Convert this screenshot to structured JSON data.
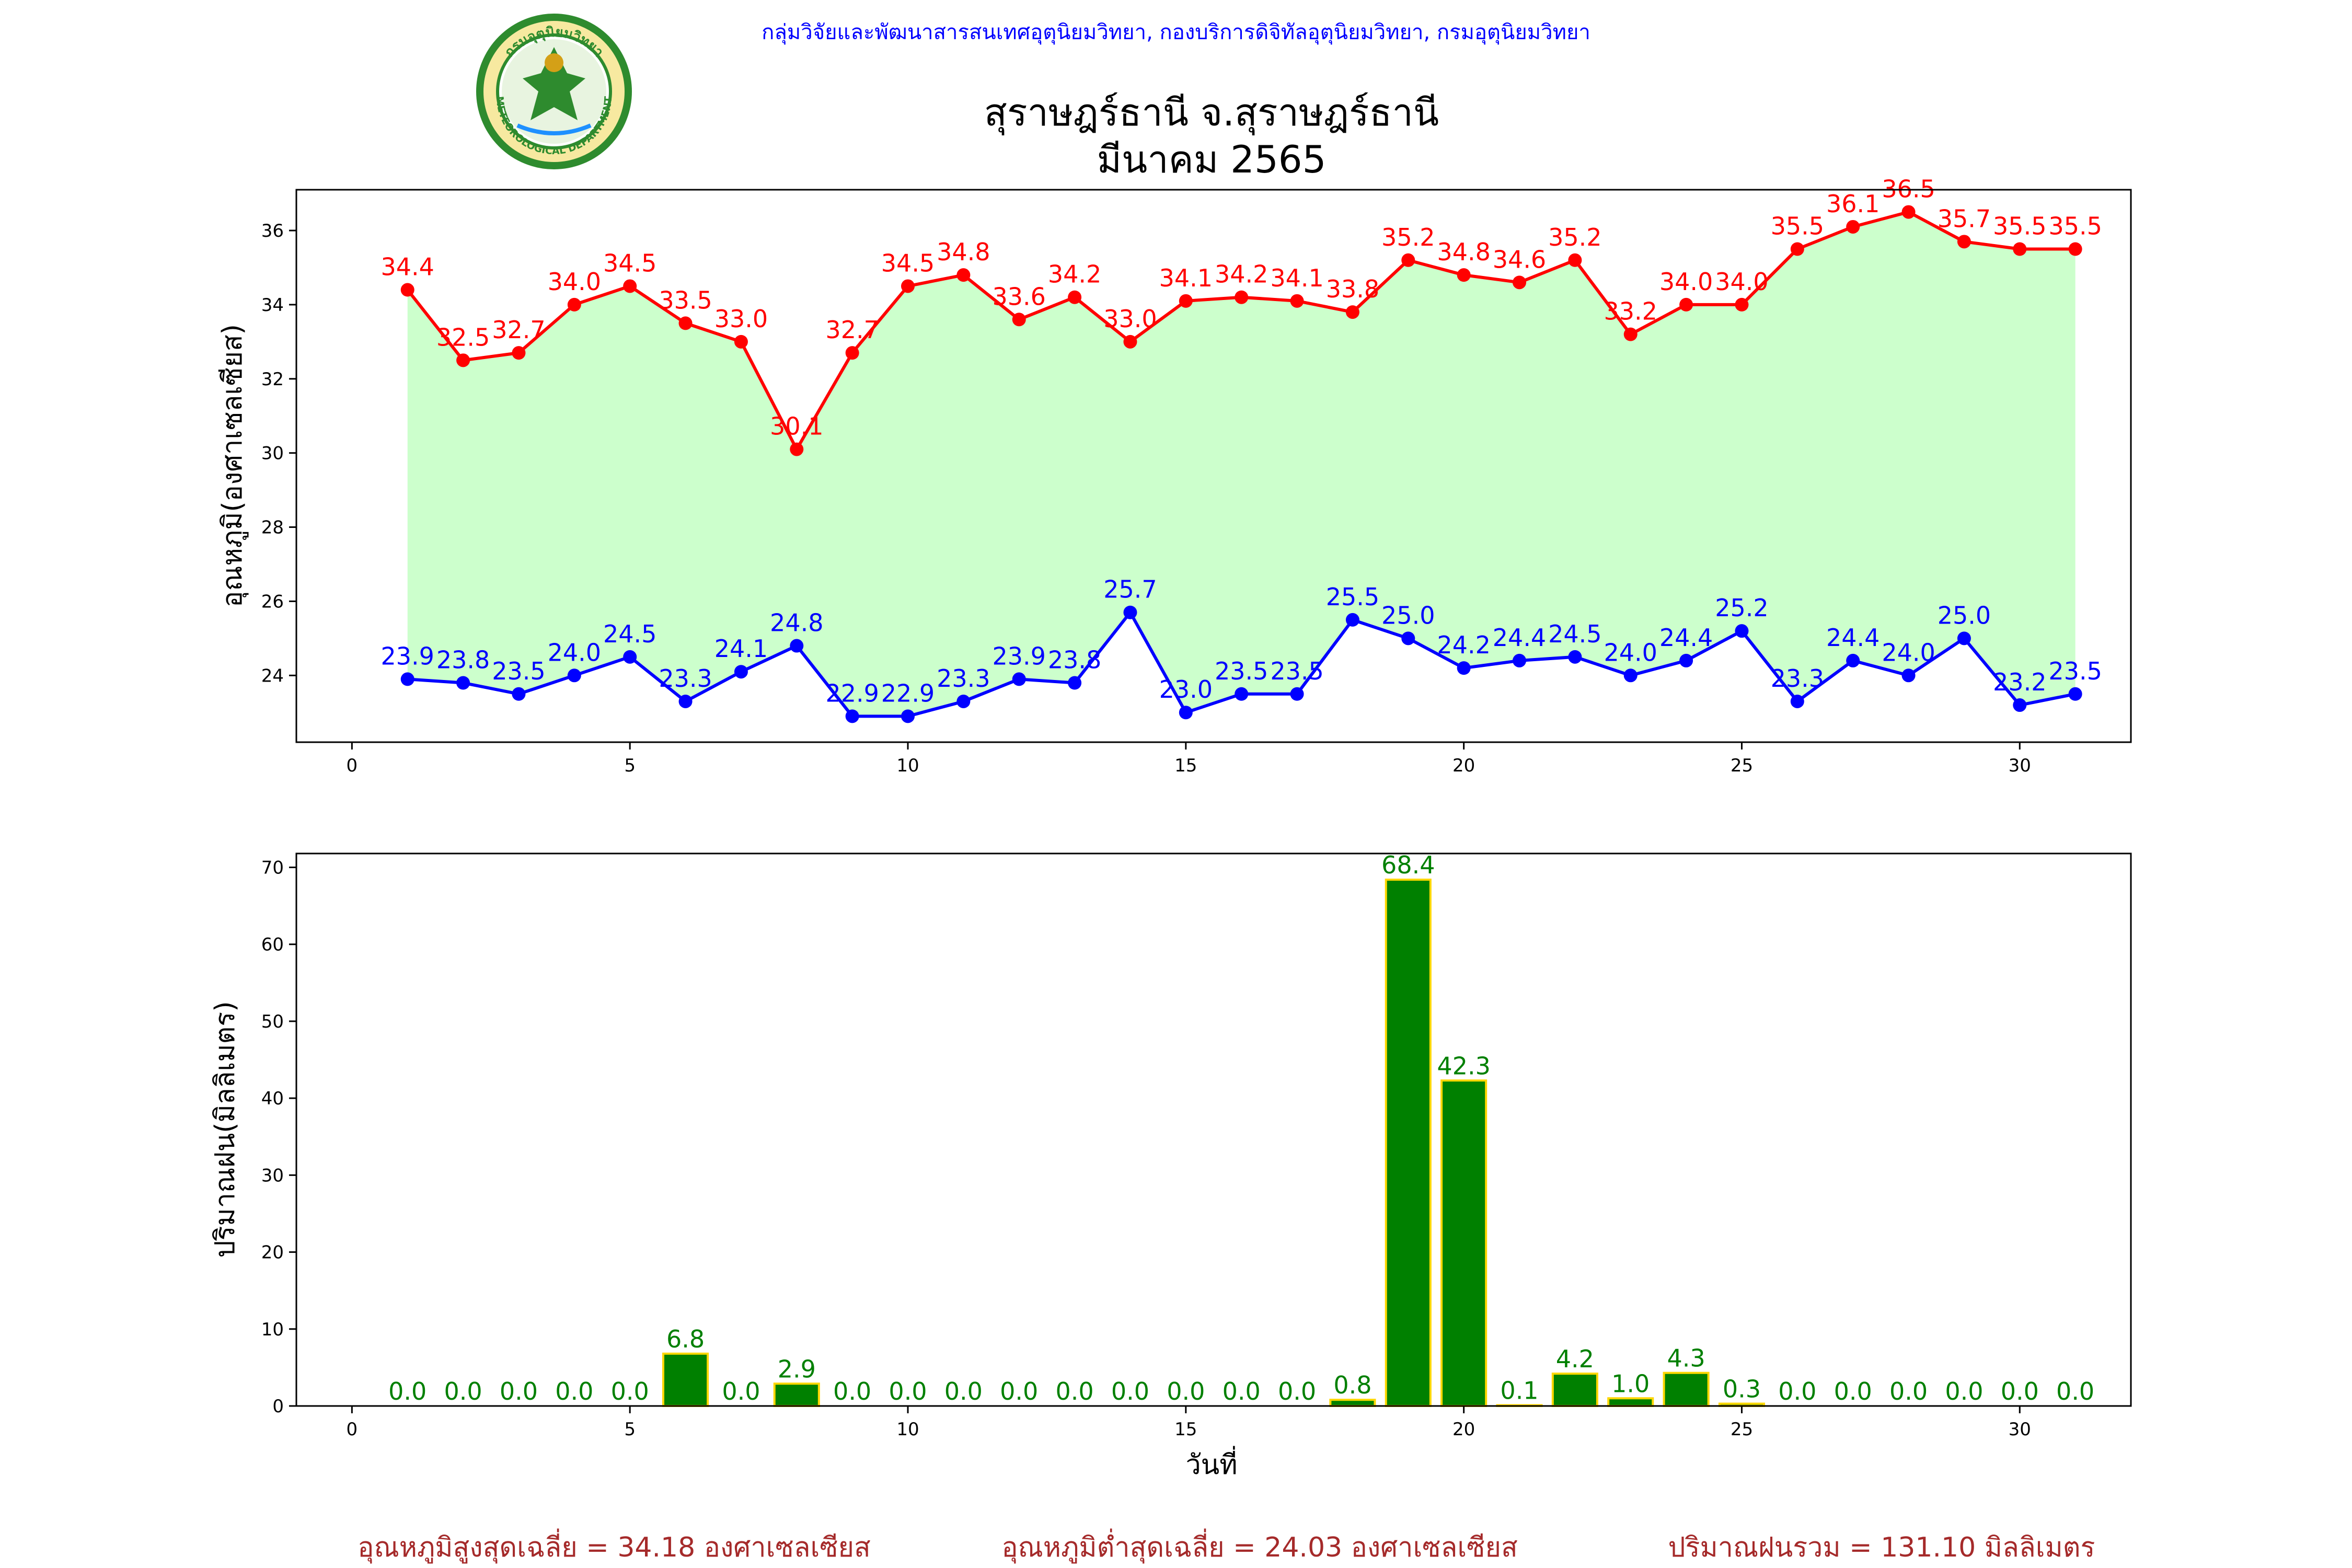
{
  "header": {
    "organization": "กลุ่มวิจัยและพัฒนาสารสนเทศอุตุนิยมวิทยา, กองบริการดิจิทัลอุตุนิยมวิทยา, กรมอุตุนิยมวิทยา",
    "logo_text": "METEOROLOGICAL DEPARTMENT",
    "logo_text_top": "กรมอุตุนิยมวิทยา",
    "station": "สุราษฎร์ธานี จ.สุราษฎร์ธานี",
    "period": "มีนาคม 2565"
  },
  "colors": {
    "max_line": "#ff0000",
    "min_line": "#0000ff",
    "fill": "#ccffcc",
    "bar": "#008000",
    "bar_edge": "#ffd700",
    "bar_label": "#008000",
    "header_text": "#0000ff",
    "footer_text": "#a52a2a"
  },
  "footer": {
    "avg_max": "อุณหภูมิสูงสุดเฉลี่ย = 34.18 องศาเซลเซียส",
    "avg_min": "อุณหภูมิต่ำสุดเฉลี่ย = 24.03 องศาเซลเซียส",
    "total_rain": "ปริมาณฝนรวม = 131.10 มิลลิเมตร"
  },
  "chart_data": [
    {
      "type": "line",
      "ylabel": "อุณหภูมิ(องศาเซลเซียส)",
      "xlim": [
        -1,
        32
      ],
      "ylim": [
        22.2,
        37.1
      ],
      "xticks": [
        0,
        5,
        10,
        15,
        20,
        25,
        30
      ],
      "yticks": [
        24,
        26,
        28,
        30,
        32,
        34,
        36
      ],
      "x": [
        1,
        2,
        3,
        4,
        5,
        6,
        7,
        8,
        9,
        10,
        11,
        12,
        13,
        14,
        15,
        16,
        17,
        18,
        19,
        20,
        21,
        22,
        23,
        24,
        25,
        26,
        27,
        28,
        29,
        30,
        31
      ],
      "series": [
        {
          "values": [
            34.4,
            32.5,
            32.7,
            34.0,
            34.5,
            33.5,
            33.0,
            30.1,
            32.7,
            34.5,
            34.8,
            33.6,
            34.2,
            33.0,
            34.1,
            34.2,
            34.1,
            33.8,
            35.2,
            34.8,
            34.6,
            35.2,
            33.2,
            34.0,
            34.0,
            35.5,
            36.1,
            36.5,
            35.7,
            35.5,
            35.5
          ]
        },
        {
          "values": [
            23.9,
            23.8,
            23.5,
            24.0,
            24.5,
            23.3,
            24.1,
            24.8,
            22.9,
            22.9,
            23.3,
            23.9,
            23.8,
            25.7,
            23.0,
            23.5,
            23.5,
            25.5,
            25.0,
            24.2,
            24.4,
            24.5,
            24.0,
            24.4,
            25.2,
            23.3,
            24.4,
            24.0,
            25.0,
            23.2,
            23.5
          ]
        }
      ],
      "grid": false
    },
    {
      "type": "bar",
      "xlabel": "วันที่",
      "ylabel": "ปริมาณฝน(มิลลิเมตร)",
      "xlim": [
        -1,
        32
      ],
      "ylim": [
        0,
        71.8
      ],
      "xticks": [
        0,
        5,
        10,
        15,
        20,
        25,
        30
      ],
      "yticks": [
        0,
        10,
        20,
        30,
        40,
        50,
        60,
        70
      ],
      "x": [
        1,
        2,
        3,
        4,
        5,
        6,
        7,
        8,
        9,
        10,
        11,
        12,
        13,
        14,
        15,
        16,
        17,
        18,
        19,
        20,
        21,
        22,
        23,
        24,
        25,
        26,
        27,
        28,
        29,
        30,
        31
      ],
      "values": [
        0.0,
        0.0,
        0.0,
        0.0,
        0.0,
        6.8,
        0.0,
        2.9,
        0.0,
        0.0,
        0.0,
        0.0,
        0.0,
        0.0,
        0.0,
        0.0,
        0.0,
        0.8,
        68.4,
        42.3,
        0.1,
        4.2,
        1.0,
        4.3,
        0.3,
        0.0,
        0.0,
        0.0,
        0.0,
        0.0,
        0.0
      ],
      "grid": false
    }
  ]
}
